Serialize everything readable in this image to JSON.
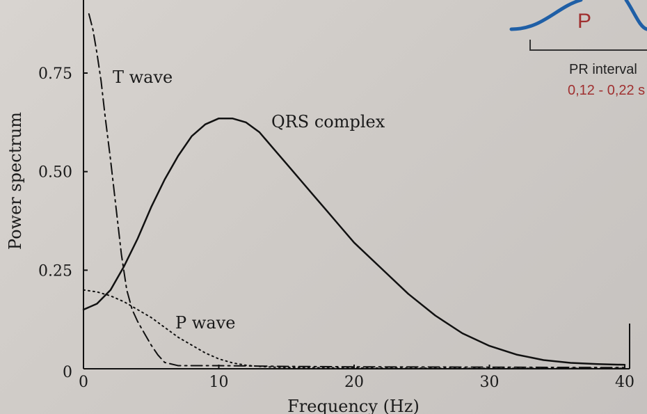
{
  "chart_data": {
    "type": "line",
    "xlabel": "Frequency (Hz)",
    "ylabel": "Power spectrum",
    "xlim": [
      0,
      40
    ],
    "ylim": [
      0,
      0.9
    ],
    "x_ticks": [
      "0",
      "10",
      "20",
      "30",
      "40"
    ],
    "y_ticks": [
      "0",
      "0.25",
      "0.50",
      "0.75"
    ],
    "grid": false,
    "series": [
      {
        "name": "QRS complex",
        "line_style": "solid",
        "x": [
          0,
          1,
          2,
          3,
          4,
          5,
          6,
          7,
          8,
          9,
          10,
          11,
          12,
          13,
          14,
          15,
          16,
          17,
          18,
          19,
          20,
          22,
          24,
          26,
          28,
          30,
          32,
          34,
          36,
          38,
          40
        ],
        "y": [
          0.15,
          0.165,
          0.2,
          0.26,
          0.33,
          0.41,
          0.48,
          0.54,
          0.59,
          0.62,
          0.635,
          0.635,
          0.625,
          0.6,
          0.56,
          0.52,
          0.48,
          0.44,
          0.4,
          0.36,
          0.32,
          0.255,
          0.19,
          0.135,
          0.09,
          0.058,
          0.036,
          0.022,
          0.015,
          0.012,
          0.01
        ]
      },
      {
        "name": "T wave",
        "line_style": "dash-dot",
        "x": [
          0.4,
          0.7,
          1.0,
          1.3,
          1.6,
          2.0,
          2.4,
          2.8,
          3.2,
          3.6,
          4.0,
          4.5,
          5.0,
          5.5,
          6.0,
          7.0,
          8.0,
          10,
          15,
          20,
          30,
          40
        ],
        "y": [
          0.9,
          0.86,
          0.8,
          0.73,
          0.64,
          0.53,
          0.41,
          0.29,
          0.2,
          0.15,
          0.12,
          0.09,
          0.06,
          0.035,
          0.016,
          0.008,
          0.008,
          0.008,
          0.006,
          0.005,
          0.004,
          0.003
        ]
      },
      {
        "name": "P wave",
        "line_style": "dotted",
        "x": [
          0,
          1,
          2,
          3,
          4,
          5,
          6,
          7,
          8,
          9,
          10,
          11,
          12,
          13,
          14,
          16,
          20,
          30,
          40
        ],
        "y": [
          0.2,
          0.195,
          0.185,
          0.17,
          0.15,
          0.13,
          0.105,
          0.08,
          0.06,
          0.04,
          0.025,
          0.015,
          0.009,
          0.006,
          0.004,
          0.003,
          0.002,
          0.001,
          0.001
        ]
      }
    ]
  },
  "inset": {
    "wave_label": "P",
    "interval_title": "PR interval",
    "interval_value": "0,12 - 0,22 s",
    "wave_color": "#1f5fa6",
    "value_color": "#a03030"
  }
}
